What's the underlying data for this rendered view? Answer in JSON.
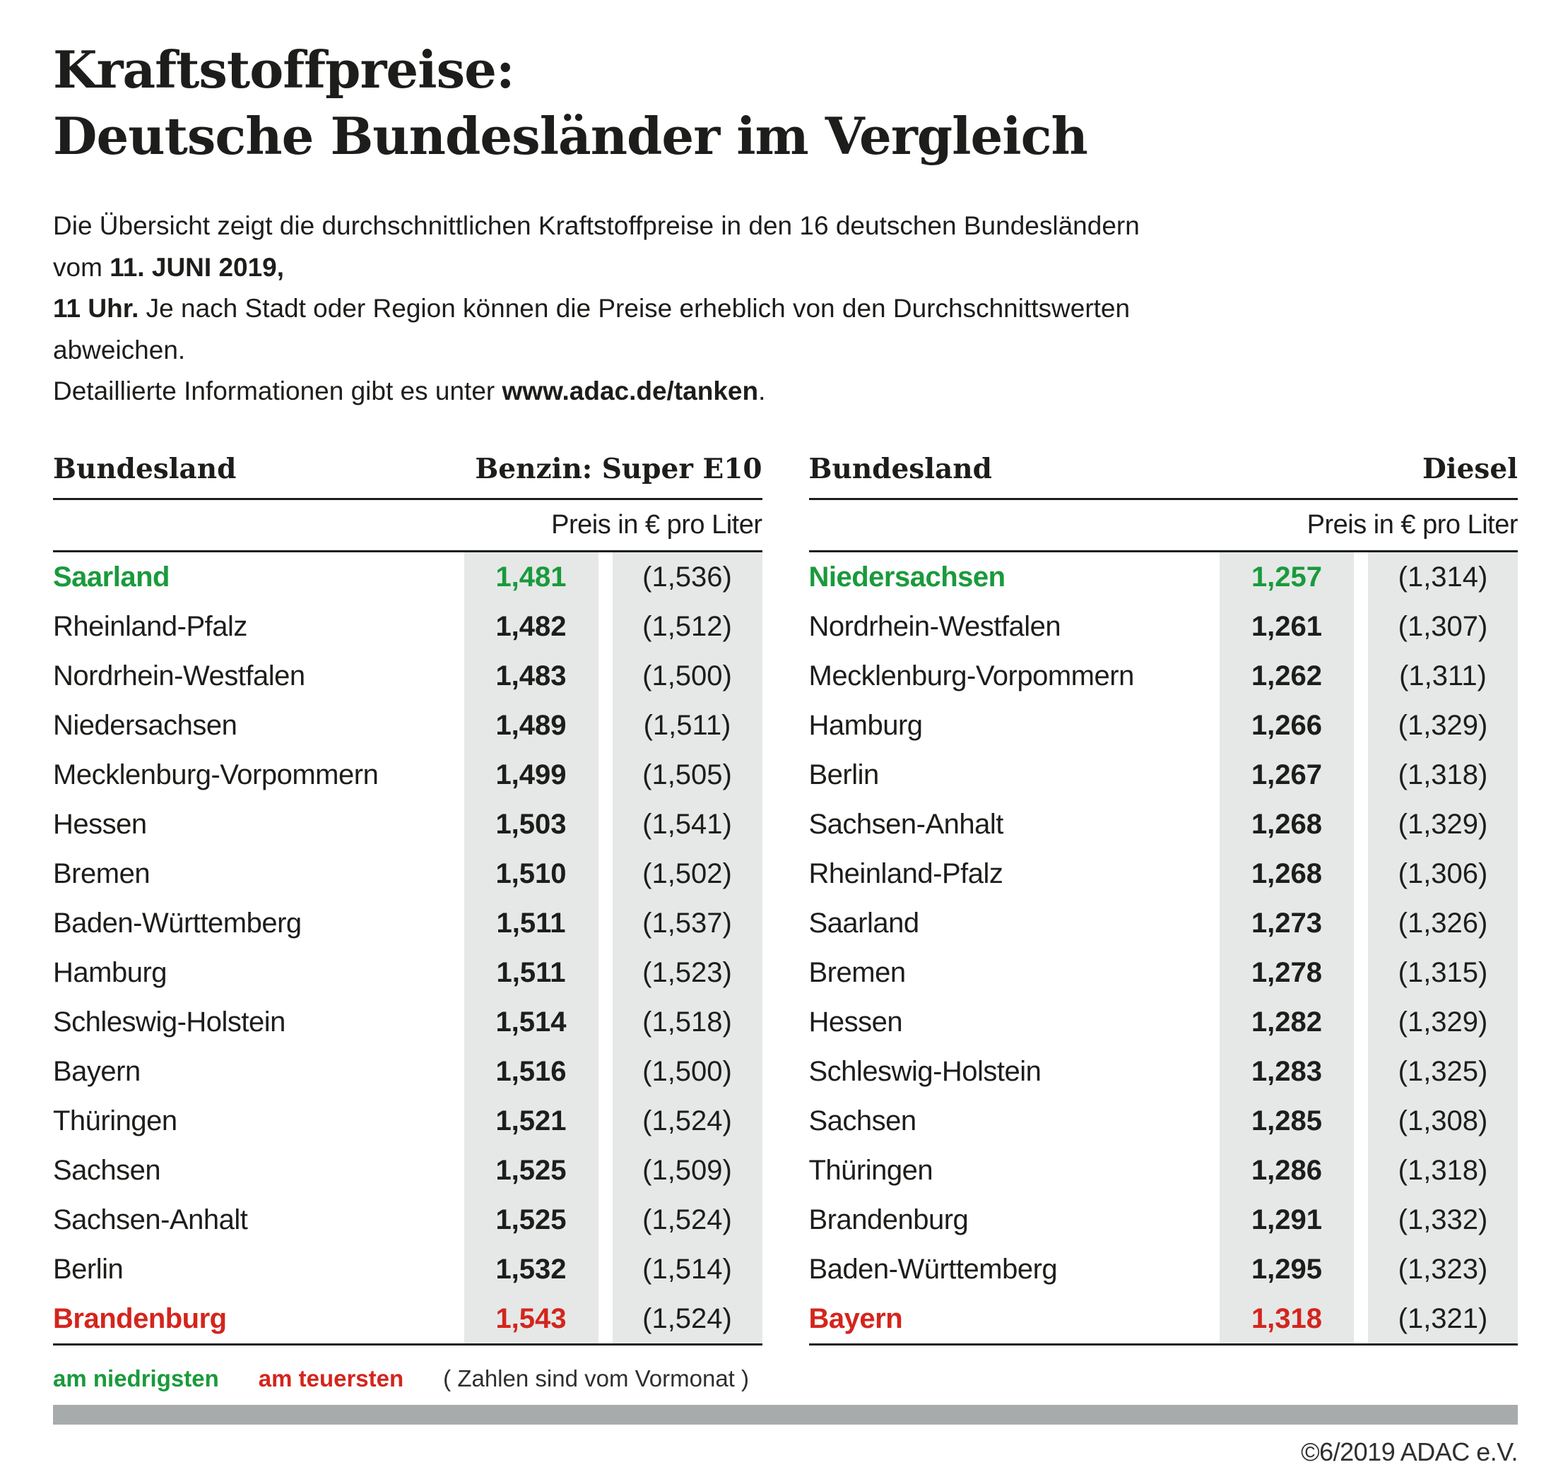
{
  "title": {
    "line1": "Kraftstoffpreise:",
    "line2": "Deutsche Bundesländer im Vergleich"
  },
  "intro": {
    "lines": [
      [
        {
          "t": "Die Übersicht zeigt die durchschnittlichen Kraftstoffpreise in den 16 deutschen Bundesländern vom ",
          "b": false
        },
        {
          "t": "11. JUNI 2019,",
          "b": true
        }
      ],
      [
        {
          "t": "11 Uhr.",
          "b": true
        },
        {
          "t": " Je nach Stadt oder Region können die Preise erheblich von den Durchschnittswerten abweichen.",
          "b": false
        }
      ],
      [
        {
          "t": "Detaillierte Informationen gibt es unter ",
          "b": false
        },
        {
          "t": "www.adac.de/tanken",
          "b": true
        },
        {
          "t": ".",
          "b": false
        }
      ]
    ]
  },
  "tables": [
    {
      "region_header": "Bundesland",
      "fuel_header": "Benzin: Super E10",
      "unit_header": "Preis in € pro Liter",
      "rows": [
        {
          "land": "Saarland",
          "price": "1,481",
          "prev": "(1,536)",
          "highlight": "lowest"
        },
        {
          "land": "Rheinland-Pfalz",
          "price": "1,482",
          "prev": "(1,512)",
          "highlight": null
        },
        {
          "land": "Nordrhein-Westfalen",
          "price": "1,483",
          "prev": "(1,500)",
          "highlight": null
        },
        {
          "land": "Niedersachsen",
          "price": "1,489",
          "prev": "(1,511)",
          "highlight": null
        },
        {
          "land": "Mecklenburg-Vorpommern",
          "price": "1,499",
          "prev": "(1,505)",
          "highlight": null
        },
        {
          "land": "Hessen",
          "price": "1,503",
          "prev": "(1,541)",
          "highlight": null
        },
        {
          "land": "Bremen",
          "price": "1,510",
          "prev": "(1,502)",
          "highlight": null
        },
        {
          "land": "Baden-Württemberg",
          "price": "1,511",
          "prev": "(1,537)",
          "highlight": null
        },
        {
          "land": "Hamburg",
          "price": "1,511",
          "prev": "(1,523)",
          "highlight": null
        },
        {
          "land": "Schleswig-Holstein",
          "price": "1,514",
          "prev": "(1,518)",
          "highlight": null
        },
        {
          "land": "Bayern",
          "price": "1,516",
          "prev": "(1,500)",
          "highlight": null
        },
        {
          "land": "Thüringen",
          "price": "1,521",
          "prev": "(1,524)",
          "highlight": null
        },
        {
          "land": "Sachsen",
          "price": "1,525",
          "prev": "(1,509)",
          "highlight": null
        },
        {
          "land": "Sachsen-Anhalt",
          "price": "1,525",
          "prev": "(1,524)",
          "highlight": null
        },
        {
          "land": "Berlin",
          "price": "1,532",
          "prev": "(1,514)",
          "highlight": null
        },
        {
          "land": "Brandenburg",
          "price": "1,543",
          "prev": "(1,524)",
          "highlight": "highest"
        }
      ]
    },
    {
      "region_header": "Bundesland",
      "fuel_header": "Diesel",
      "unit_header": "Preis in € pro Liter",
      "rows": [
        {
          "land": "Niedersachsen",
          "price": "1,257",
          "prev": "(1,314)",
          "highlight": "lowest"
        },
        {
          "land": "Nordrhein-Westfalen",
          "price": "1,261",
          "prev": "(1,307)",
          "highlight": null
        },
        {
          "land": "Mecklenburg-Vorpommern",
          "price": "1,262",
          "prev": "(1,311)",
          "highlight": null
        },
        {
          "land": "Hamburg",
          "price": "1,266",
          "prev": "(1,329)",
          "highlight": null
        },
        {
          "land": "Berlin",
          "price": "1,267",
          "prev": "(1,318)",
          "highlight": null
        },
        {
          "land": "Sachsen-Anhalt",
          "price": "1,268",
          "prev": "(1,329)",
          "highlight": null
        },
        {
          "land": "Rheinland-Pfalz",
          "price": "1,268",
          "prev": "(1,306)",
          "highlight": null
        },
        {
          "land": "Saarland",
          "price": "1,273",
          "prev": "(1,326)",
          "highlight": null
        },
        {
          "land": "Bremen",
          "price": "1,278",
          "prev": "(1,315)",
          "highlight": null
        },
        {
          "land": "Hessen",
          "price": "1,282",
          "prev": "(1,329)",
          "highlight": null
        },
        {
          "land": "Schleswig-Holstein",
          "price": "1,283",
          "prev": "(1,325)",
          "highlight": null
        },
        {
          "land": "Sachsen",
          "price": "1,285",
          "prev": "(1,308)",
          "highlight": null
        },
        {
          "land": "Thüringen",
          "price": "1,286",
          "prev": "(1,318)",
          "highlight": null
        },
        {
          "land": "Brandenburg",
          "price": "1,291",
          "prev": "(1,332)",
          "highlight": null
        },
        {
          "land": "Baden-Württemberg",
          "price": "1,295",
          "prev": "(1,323)",
          "highlight": null
        },
        {
          "land": "Bayern",
          "price": "1,318",
          "prev": "(1,321)",
          "highlight": "highest"
        }
      ]
    }
  ],
  "legend": {
    "lowest": "am niedrigsten",
    "highest": "am teuersten",
    "note": "( Zahlen sind vom Vormonat )"
  },
  "footer": {
    "copyright": "©6/2019 ADAC e.V."
  },
  "colors": {
    "green": "#1a9a3c",
    "red": "#d4251d",
    "cell_background": "#e5e8e7",
    "footer_bar": "#a8abac",
    "ink": "#1d1d1b"
  },
  "chart_data": [
    {
      "type": "table",
      "title": "Benzin: Super E10",
      "columns": [
        "Bundesland",
        "Preis in € pro Liter",
        "Vormonat"
      ],
      "rows": [
        [
          "Saarland",
          1.481,
          1.536
        ],
        [
          "Rheinland-Pfalz",
          1.482,
          1.512
        ],
        [
          "Nordrhein-Westfalen",
          1.483,
          1.5
        ],
        [
          "Niedersachsen",
          1.489,
          1.511
        ],
        [
          "Mecklenburg-Vorpommern",
          1.499,
          1.505
        ],
        [
          "Hessen",
          1.503,
          1.541
        ],
        [
          "Bremen",
          1.51,
          1.502
        ],
        [
          "Baden-Württemberg",
          1.511,
          1.537
        ],
        [
          "Hamburg",
          1.511,
          1.523
        ],
        [
          "Schleswig-Holstein",
          1.514,
          1.518
        ],
        [
          "Bayern",
          1.516,
          1.5
        ],
        [
          "Thüringen",
          1.521,
          1.524
        ],
        [
          "Sachsen",
          1.525,
          1.509
        ],
        [
          "Sachsen-Anhalt",
          1.525,
          1.524
        ],
        [
          "Berlin",
          1.532,
          1.514
        ],
        [
          "Brandenburg",
          1.543,
          1.524
        ]
      ],
      "lowest": "Saarland",
      "highest": "Brandenburg"
    },
    {
      "type": "table",
      "title": "Diesel",
      "columns": [
        "Bundesland",
        "Preis in € pro Liter",
        "Vormonat"
      ],
      "rows": [
        [
          "Niedersachsen",
          1.257,
          1.314
        ],
        [
          "Nordrhein-Westfalen",
          1.261,
          1.307
        ],
        [
          "Mecklenburg-Vorpommern",
          1.262,
          1.311
        ],
        [
          "Hamburg",
          1.266,
          1.329
        ],
        [
          "Berlin",
          1.267,
          1.318
        ],
        [
          "Sachsen-Anhalt",
          1.268,
          1.329
        ],
        [
          "Rheinland-Pfalz",
          1.268,
          1.306
        ],
        [
          "Saarland",
          1.273,
          1.326
        ],
        [
          "Bremen",
          1.278,
          1.315
        ],
        [
          "Hessen",
          1.282,
          1.329
        ],
        [
          "Schleswig-Holstein",
          1.283,
          1.325
        ],
        [
          "Sachsen",
          1.285,
          1.308
        ],
        [
          "Thüringen",
          1.286,
          1.318
        ],
        [
          "Brandenburg",
          1.291,
          1.332
        ],
        [
          "Baden-Württemberg",
          1.295,
          1.323
        ],
        [
          "Bayern",
          1.318,
          1.321
        ]
      ],
      "lowest": "Niedersachsen",
      "highest": "Bayern"
    }
  ]
}
